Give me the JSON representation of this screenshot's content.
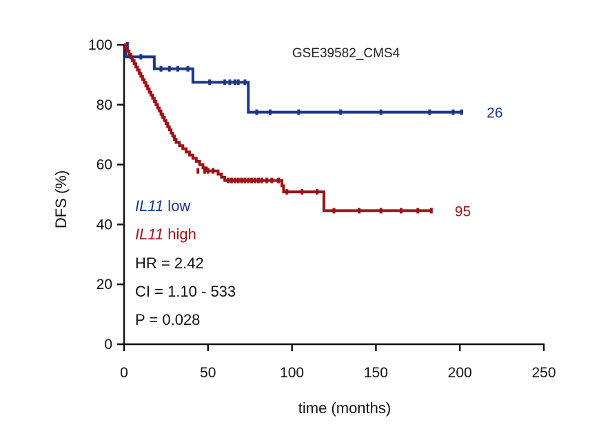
{
  "chart_data": {
    "type": "line",
    "subtype": "kaplan-meier",
    "title": "GSE39582_CMS4",
    "xlabel": "time (months)",
    "ylabel": "DFS (%)",
    "xlim": [
      0,
      250
    ],
    "ylim": [
      0,
      100
    ],
    "x_ticks": [
      0,
      50,
      100,
      150,
      200,
      250
    ],
    "y_ticks": [
      0,
      20,
      40,
      60,
      80,
      100
    ],
    "grid": false,
    "series": [
      {
        "name": "IL11 low",
        "name_parts": [
          "IL11",
          " low"
        ],
        "color": "#1e3589",
        "n_at_end": "26",
        "steps": [
          [
            0,
            100
          ],
          [
            1,
            100
          ],
          [
            1,
            96
          ],
          [
            18,
            96
          ],
          [
            18,
            92
          ],
          [
            41,
            92
          ],
          [
            41,
            87.5
          ],
          [
            74,
            87.5
          ],
          [
            74,
            77.5
          ],
          [
            202,
            77.5
          ]
        ],
        "censors": [
          [
            2,
            100
          ],
          [
            4,
            96
          ],
          [
            10,
            96
          ],
          [
            22,
            92
          ],
          [
            27,
            92
          ],
          [
            32,
            92
          ],
          [
            38,
            92
          ],
          [
            51,
            87.5
          ],
          [
            60,
            87.5
          ],
          [
            63,
            87.5
          ],
          [
            66,
            87.5
          ],
          [
            68,
            87.5
          ],
          [
            72,
            87.5
          ],
          [
            79,
            77.5
          ],
          [
            87,
            77.5
          ],
          [
            104,
            77.5
          ],
          [
            129,
            77.5
          ],
          [
            153,
            77.5
          ],
          [
            182,
            77.5
          ],
          [
            196,
            77.5
          ],
          [
            201,
            77.5
          ]
        ]
      },
      {
        "name": "IL11 high",
        "name_parts": [
          "IL11",
          " high"
        ],
        "color": "#9b1318",
        "n_at_end": "95",
        "steps": [
          [
            0,
            100
          ],
          [
            1,
            98.9
          ],
          [
            2,
            97.9
          ],
          [
            3,
            96.8
          ],
          [
            4,
            95.8
          ],
          [
            5,
            94.7
          ],
          [
            6,
            93.7
          ],
          [
            7,
            92.6
          ],
          [
            8,
            91.6
          ],
          [
            9,
            90.5
          ],
          [
            10,
            89.5
          ],
          [
            11,
            88.4
          ],
          [
            12,
            87.4
          ],
          [
            13,
            86.3
          ],
          [
            14,
            85.3
          ],
          [
            15,
            84.2
          ],
          [
            16,
            83.2
          ],
          [
            17,
            82.1
          ],
          [
            18,
            81.1
          ],
          [
            19,
            80.0
          ],
          [
            20,
            78.9
          ],
          [
            21,
            77.9
          ],
          [
            22,
            76.8
          ],
          [
            23,
            75.8
          ],
          [
            24,
            74.7
          ],
          [
            25,
            73.7
          ],
          [
            26,
            72.6
          ],
          [
            27,
            71.6
          ],
          [
            28,
            70.5
          ],
          [
            29,
            69.5
          ],
          [
            30,
            68.4
          ],
          [
            31,
            67.4
          ],
          [
            33,
            66.3
          ],
          [
            35,
            65.3
          ],
          [
            37,
            64.2
          ],
          [
            39,
            63.2
          ],
          [
            41,
            62.1
          ],
          [
            43,
            61.1
          ],
          [
            45,
            60.0
          ],
          [
            47,
            58.9
          ],
          [
            49,
            57.9
          ],
          [
            55,
            57.9
          ],
          [
            56,
            56.8
          ],
          [
            58,
            55.8
          ],
          [
            60,
            54.7
          ],
          [
            93,
            54.7
          ],
          [
            94,
            52.9
          ],
          [
            95,
            50.9
          ],
          [
            119,
            50.9
          ],
          [
            119,
            44.6
          ],
          [
            183,
            44.6
          ]
        ],
        "censors": [
          [
            44,
            57.9
          ],
          [
            48,
            57.9
          ],
          [
            50,
            57.9
          ],
          [
            53,
            57.9
          ],
          [
            62,
            54.7
          ],
          [
            64,
            54.7
          ],
          [
            66,
            54.7
          ],
          [
            68,
            54.7
          ],
          [
            70,
            54.7
          ],
          [
            72,
            54.7
          ],
          [
            74,
            54.7
          ],
          [
            76,
            54.7
          ],
          [
            78,
            54.7
          ],
          [
            80,
            54.7
          ],
          [
            82,
            54.7
          ],
          [
            85,
            54.7
          ],
          [
            88,
            54.7
          ],
          [
            92,
            54.7
          ],
          [
            97,
            50.9
          ],
          [
            106,
            50.9
          ],
          [
            115,
            50.9
          ],
          [
            125,
            44.6
          ],
          [
            140,
            44.6
          ],
          [
            153,
            44.6
          ],
          [
            165,
            44.6
          ],
          [
            175,
            44.6
          ],
          [
            183,
            44.6
          ]
        ]
      }
    ],
    "annotations": {
      "hr": "HR = 2.42",
      "ci": "CI = 1.10 - 533",
      "p": "P = 0.028"
    }
  }
}
